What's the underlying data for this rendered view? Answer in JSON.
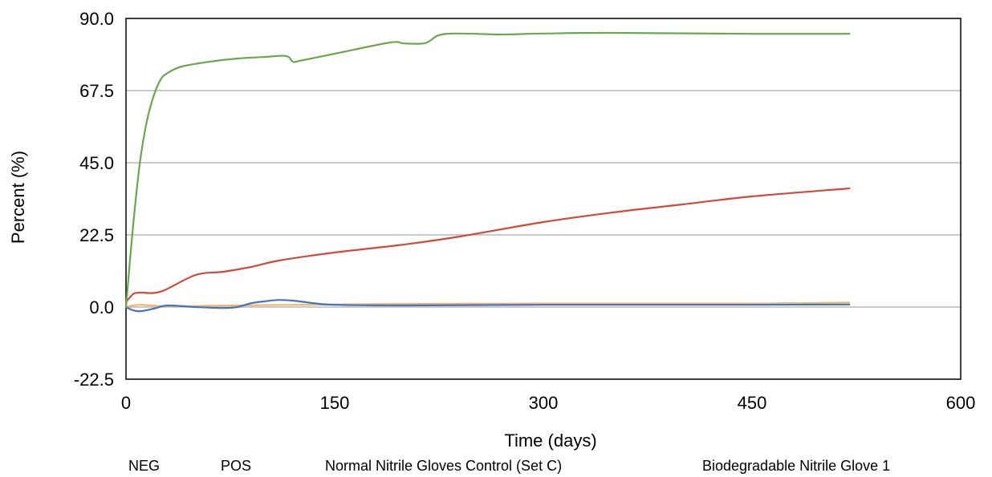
{
  "chart_data": {
    "type": "line",
    "title": "",
    "xlabel": "Time (days)",
    "ylabel": "Percent (%)",
    "xlim": [
      0,
      600
    ],
    "ylim": [
      -22.5,
      90.0
    ],
    "x_ticks": [
      0,
      150,
      300,
      450,
      600
    ],
    "x_tick_labels": [
      "0",
      "150",
      "300",
      "450",
      "600"
    ],
    "y_ticks": [
      -22.5,
      0.0,
      22.5,
      45.0,
      67.5,
      90.0
    ],
    "y_tick_labels": [
      "-22.5",
      "0.0",
      "22.5",
      "45.0",
      "67.5",
      "90.0"
    ],
    "grid": "horizontal",
    "legend_position": "bottom",
    "legend": [
      "NEG",
      "POS",
      "Normal Nitrile Gloves Control (Set C)",
      "Biodegradable Nitrile Glove 1"
    ],
    "series": [
      {
        "name": "NEG",
        "color": "#4472c4",
        "points": [
          [
            0,
            0
          ],
          [
            5,
            -1.0
          ],
          [
            10,
            -1.3
          ],
          [
            20,
            -0.5
          ],
          [
            30,
            0.5
          ],
          [
            50,
            0.0
          ],
          [
            70,
            -0.3
          ],
          [
            80,
            0
          ],
          [
            90,
            1.2
          ],
          [
            100,
            1.8
          ],
          [
            110,
            2.2
          ],
          [
            120,
            2.0
          ],
          [
            135,
            1.2
          ],
          [
            150,
            0.7
          ],
          [
            200,
            0.5
          ],
          [
            300,
            0.7
          ],
          [
            450,
            0.7
          ],
          [
            520,
            0.8
          ]
        ]
      },
      {
        "name": "POS",
        "color": "#6aa84f",
        "points": [
          [
            0,
            0
          ],
          [
            5,
            25
          ],
          [
            10,
            45
          ],
          [
            15,
            58
          ],
          [
            20,
            66
          ],
          [
            25,
            71
          ],
          [
            30,
            73
          ],
          [
            40,
            75
          ],
          [
            60,
            76.5
          ],
          [
            80,
            77.5
          ],
          [
            100,
            78
          ],
          [
            115,
            78.3
          ],
          [
            120,
            76.5
          ],
          [
            125,
            76.8
          ],
          [
            150,
            79
          ],
          [
            190,
            82.5
          ],
          [
            200,
            82.2
          ],
          [
            215,
            82.3
          ],
          [
            225,
            84.8
          ],
          [
            240,
            85.3
          ],
          [
            270,
            85.0
          ],
          [
            300,
            85.3
          ],
          [
            350,
            85.5
          ],
          [
            450,
            85.2
          ],
          [
            520,
            85.2
          ]
        ]
      },
      {
        "name": "Normal Nitrile Gloves Control (Set C)",
        "color": "#f0b868",
        "points": [
          [
            0,
            0
          ],
          [
            10,
            0.7
          ],
          [
            30,
            0.2
          ],
          [
            60,
            0.4
          ],
          [
            100,
            0.6
          ],
          [
            150,
            0.8
          ],
          [
            200,
            1.0
          ],
          [
            300,
            1.1
          ],
          [
            450,
            1.1
          ],
          [
            520,
            1.4
          ]
        ]
      },
      {
        "name": "Biodegradable Nitrile Glove 1",
        "color": "#d04a3a",
        "points": [
          [
            0,
            1.5
          ],
          [
            5,
            4.0
          ],
          [
            10,
            4.5
          ],
          [
            25,
            4.8
          ],
          [
            50,
            10.0
          ],
          [
            70,
            11.0
          ],
          [
            90,
            12.5
          ],
          [
            110,
            14.5
          ],
          [
            150,
            17.0
          ],
          [
            200,
            19.5
          ],
          [
            240,
            22.0
          ],
          [
            300,
            26.5
          ],
          [
            350,
            29.5
          ],
          [
            400,
            32.0
          ],
          [
            450,
            34.5
          ],
          [
            520,
            37.0
          ]
        ]
      }
    ]
  }
}
